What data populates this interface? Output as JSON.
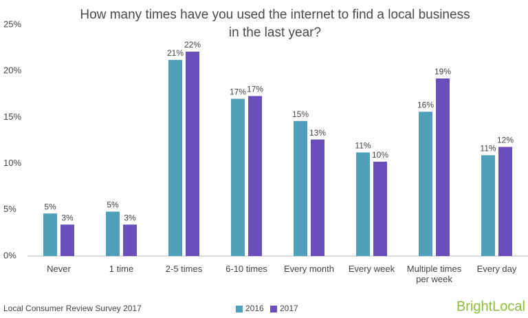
{
  "chart_data": {
    "type": "bar",
    "title": [
      "How many times have you used the internet to find a local business",
      "in the last year?"
    ],
    "categories": [
      "Never",
      "1 time",
      "2-5 times",
      "6-10 times",
      "Every month",
      "Every week",
      "Multiple times per week",
      "Every day"
    ],
    "series": [
      {
        "name": "2016",
        "color": "#4fa0bb",
        "values": [
          4.6,
          4.8,
          21.2,
          17.0,
          14.6,
          11.2,
          15.6,
          10.9
        ],
        "value_labels": [
          "5%",
          "5%",
          "21%",
          "17%",
          "15%",
          "11%",
          "16%",
          "11%"
        ]
      },
      {
        "name": "2017",
        "color": "#6a4fba",
        "values": [
          3.4,
          3.4,
          22.1,
          17.3,
          12.6,
          10.2,
          19.2,
          11.8
        ],
        "value_labels": [
          "3%",
          "3%",
          "22%",
          "17%",
          "13%",
          "10%",
          "19%",
          "12%"
        ]
      }
    ],
    "ylim": [
      0,
      25
    ],
    "yticks": [
      {
        "value": 0,
        "label": "0%"
      },
      {
        "value": 5,
        "label": "5%"
      },
      {
        "value": 10,
        "label": "10%"
      },
      {
        "value": 15,
        "label": "15%"
      },
      {
        "value": 20,
        "label": "20%"
      },
      {
        "value": 25,
        "label": "25%"
      }
    ],
    "grid": false,
    "legend": "bottom",
    "source": "Local Consumer Review Survey 2017",
    "brand": "BrightLocal"
  }
}
